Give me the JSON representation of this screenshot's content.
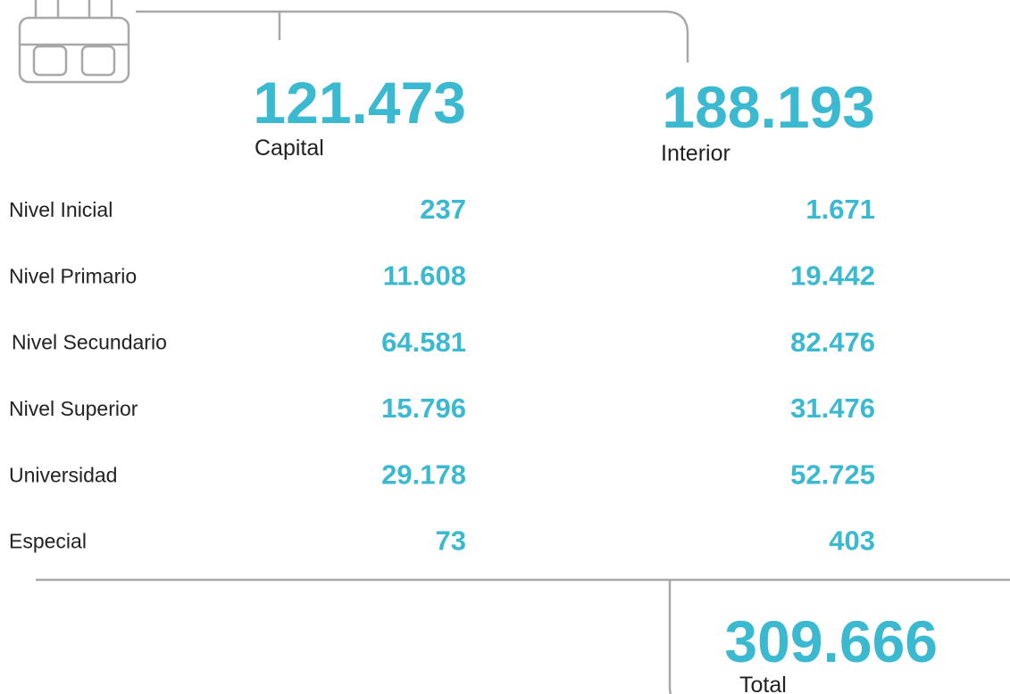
{
  "header": {
    "capital": {
      "value": "121.473",
      "label": "Capital"
    },
    "interior": {
      "value": "188.193",
      "label": "Interior"
    }
  },
  "rows": [
    {
      "label": "Nivel Inicial",
      "capital": "237",
      "interior": "1.671"
    },
    {
      "label": "Nivel Primario",
      "capital": "11.608",
      "interior": "19.442"
    },
    {
      "label": "Nivel Secundario",
      "capital": "64.581",
      "interior": "82.476"
    },
    {
      "label": "Nivel Superior",
      "capital": "15.796",
      "interior": "31.476"
    },
    {
      "label": "Universidad",
      "capital": "29.178",
      "interior": "52.725"
    },
    {
      "label": "Especial",
      "capital": "73",
      "interior": "403"
    }
  ],
  "total": {
    "value": "309.666",
    "label": "Total"
  }
}
